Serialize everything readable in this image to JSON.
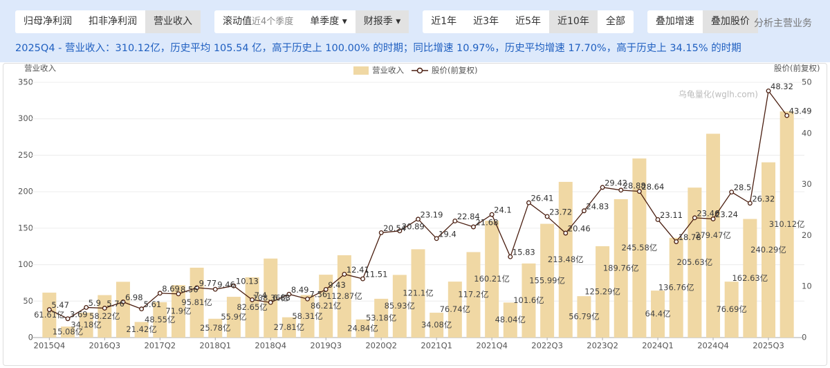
{
  "toolbar": {
    "groups": [
      {
        "buttons": [
          {
            "label": "归母净利润"
          },
          {
            "label": "扣非净利润"
          },
          {
            "label": "营业收入",
            "active": true
          }
        ]
      },
      {
        "buttons": [
          {
            "label": "滚动值",
            "note": "近4个季度"
          },
          {
            "label": "单季度 ▾"
          },
          {
            "label": "财报季 ▾",
            "active": true
          }
        ]
      },
      {
        "buttons": [
          {
            "label": "近1年"
          },
          {
            "label": "近3年"
          },
          {
            "label": "近5年"
          },
          {
            "label": "近10年",
            "active": true
          },
          {
            "label": "全部"
          }
        ]
      },
      {
        "buttons": [
          {
            "label": "叠加增速"
          },
          {
            "label": "叠加股价",
            "active": true
          }
        ]
      }
    ],
    "link": "分析主营业务"
  },
  "summary": "2025Q4 - 营业收入：310.12亿，历史平均 105.54 亿，高于历史上 100.00% 的时期；同比增速 10.97%，历史平均增速 17.70%，高于历史上 34.15% 的时期",
  "chart_data": {
    "type": "bar-line",
    "y_label": "营业收入",
    "y2_label": "股价(前复权)",
    "watermark": "乌龟量化(wglh.com)",
    "categories": [
      "2015Q4",
      null,
      null,
      "2016Q3",
      null,
      null,
      "2017Q2",
      null,
      null,
      "2018Q1",
      null,
      null,
      "2018Q4",
      null,
      null,
      "2019Q3",
      null,
      null,
      "2020Q2",
      null,
      null,
      "2021Q1",
      null,
      null,
      "2021Q4",
      null,
      null,
      "2022Q3",
      null,
      null,
      "2023Q2",
      null,
      null,
      "2024Q1",
      null,
      null,
      "2024Q4",
      null,
      null,
      "2025Q3",
      null
    ],
    "series": [
      {
        "name": "营业收入",
        "type": "bar",
        "color": "#f0d8a4",
        "values": [
          61.61,
          15.08,
          34.18,
          58.22,
          76.5,
          21.42,
          48.55,
          71.9,
          95.81,
          25.78,
          55.9,
          82.65,
          108.36,
          27.81,
          58.31,
          86.21,
          112.87,
          24.84,
          53.18,
          85.93,
          121.1,
          34.08,
          76.74,
          117.2,
          160.21,
          48.04,
          101.6,
          155.99,
          213.48,
          56.79,
          125.29,
          189.76,
          245.58,
          64.4,
          136.76,
          205.63,
          279.47,
          76.69,
          162.63,
          240.29,
          310.12
        ],
        "value_labels": [
          "61.61亿",
          "15.08亿",
          "34.18亿",
          "58.22亿",
          null,
          "21.42亿",
          "48.55亿",
          "71.9亿",
          "95.81亿",
          "25.78亿",
          "55.9亿",
          "82.65亿",
          "108.36亿",
          "27.81亿",
          "58.31亿",
          "86.21亿",
          "112.87亿",
          "24.84亿",
          "53.18亿",
          "85.93亿",
          "121.1亿",
          "34.08亿",
          "76.74亿",
          "117.2亿",
          "160.21亿",
          "48.04亿",
          "101.6亿",
          "155.99亿",
          "213.48亿",
          "56.79亿",
          "125.29亿",
          "189.76亿",
          "245.58亿",
          "64.4亿",
          "136.76亿",
          "205.63亿",
          "279.47亿",
          "76.69亿",
          "162.63亿",
          "240.29亿",
          "310.12亿"
        ]
      },
      {
        "name": "股价(前复权)",
        "type": "line",
        "axis": "y2",
        "color": "#4a1e10",
        "values": [
          5.47,
          3.69,
          5.9,
          5.76,
          6.98,
          5.61,
          8.69,
          8.56,
          9.77,
          9.46,
          10.13,
          7.4,
          6.88,
          8.49,
          7.56,
          9.43,
          12.41,
          11.51,
          20.54,
          20.89,
          23.19,
          19.4,
          22.84,
          21.68,
          24.1,
          15.83,
          26.41,
          23.72,
          20.46,
          24.83,
          29.42,
          28.88,
          28.64,
          23.11,
          18.78,
          23.46,
          23.24,
          28.5,
          26.32,
          48.32,
          43.49
        ]
      }
    ],
    "ylim": [
      0,
      350
    ],
    "yticks": [
      0,
      50,
      100,
      150,
      200,
      250,
      300,
      350
    ],
    "y2lim": [
      0,
      50
    ],
    "y2ticks": [
      0,
      10,
      20,
      30,
      40,
      50
    ],
    "grid": true
  }
}
